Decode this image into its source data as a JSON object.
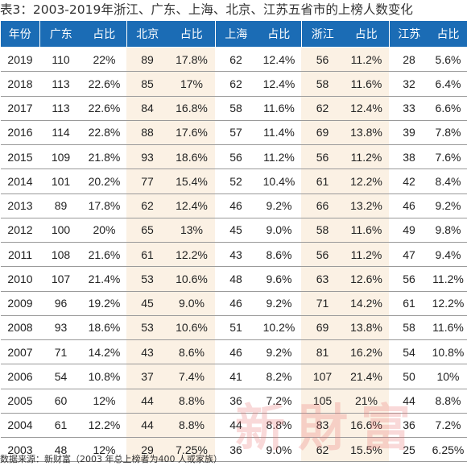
{
  "title": "表3：2003-2019年浙江、广东、上海、北京、江苏五省市的上榜人数变化",
  "headers": [
    "年份",
    "广东",
    "占比",
    "北京",
    "占比",
    "上海",
    "占比",
    "浙江",
    "占比",
    "江苏",
    "占比"
  ],
  "rows": [
    [
      "2019",
      "110",
      "22%",
      "89",
      "17.8%",
      "62",
      "12.4%",
      "56",
      "11.2%",
      "28",
      "5.6%"
    ],
    [
      "2018",
      "113",
      "22.6%",
      "85",
      "17%",
      "62",
      "12.4%",
      "58",
      "11.6%",
      "32",
      "6.4%"
    ],
    [
      "2017",
      "113",
      "22.6%",
      "84",
      "16.8%",
      "58",
      "11.6%",
      "62",
      "12.4%",
      "33",
      "6.6%"
    ],
    [
      "2016",
      "114",
      "22.8%",
      "88",
      "17.6%",
      "57",
      "11.4%",
      "69",
      "13.8%",
      "39",
      "7.8%"
    ],
    [
      "2015",
      "109",
      "21.8%",
      "93",
      "18.6%",
      "56",
      "11.2%",
      "56",
      "11.2%",
      "38",
      "7.6%"
    ],
    [
      "2014",
      "101",
      "20.2%",
      "77",
      "15.4%",
      "52",
      "10.4%",
      "61",
      "12.2%",
      "42",
      "8.4%"
    ],
    [
      "2013",
      "89",
      "17.8%",
      "62",
      "12.4%",
      "46",
      "9.2%",
      "66",
      "13.2%",
      "46",
      "9.2%"
    ],
    [
      "2012",
      "100",
      "20%",
      "65",
      "13%",
      "45",
      "9.0%",
      "58",
      "11.6%",
      "49",
      "9.8%"
    ],
    [
      "2011",
      "108",
      "21.6%",
      "61",
      "12.2%",
      "43",
      "8.6%",
      "56",
      "11.2%",
      "47",
      "9.4%"
    ],
    [
      "2010",
      "107",
      "21.4%",
      "53",
      "10.6%",
      "48",
      "9.6%",
      "63",
      "12.6%",
      "56",
      "11.2%"
    ],
    [
      "2009",
      "96",
      "19.2%",
      "45",
      "9.0%",
      "46",
      "9.2%",
      "71",
      "14.2%",
      "61",
      "12.2%"
    ],
    [
      "2008",
      "93",
      "18.6%",
      "53",
      "10.6%",
      "51",
      "10.2%",
      "69",
      "13.8%",
      "58",
      "11.6%"
    ],
    [
      "2007",
      "71",
      "14.2%",
      "43",
      "8.6%",
      "46",
      "9.2%",
      "81",
      "16.2%",
      "54",
      "10.8%"
    ],
    [
      "2006",
      "54",
      "10.8%",
      "37",
      "7.4%",
      "41",
      "8.2%",
      "107",
      "21.4%",
      "50",
      "10%"
    ],
    [
      "2005",
      "60",
      "12%",
      "44",
      "8.8%",
      "36",
      "7.2%",
      "105",
      "21%",
      "44",
      "8.8%"
    ],
    [
      "2004",
      "61",
      "12.2%",
      "44",
      "8.8%",
      "44",
      "8.8%",
      "83",
      "16.6%",
      "36",
      "7.2%"
    ],
    [
      "2003",
      "48",
      "12%",
      "29",
      "7.25%",
      "36",
      "9.0%",
      "62",
      "15.5%",
      "25",
      "6.25%"
    ]
  ],
  "footer": "数据来源：新财富（2003 年总上榜者为400 人或家族）",
  "watermark": "新財富",
  "colors": {
    "header_bg": "#1b6cb5",
    "stripe": "#fbf1e4",
    "text": "#222222"
  }
}
